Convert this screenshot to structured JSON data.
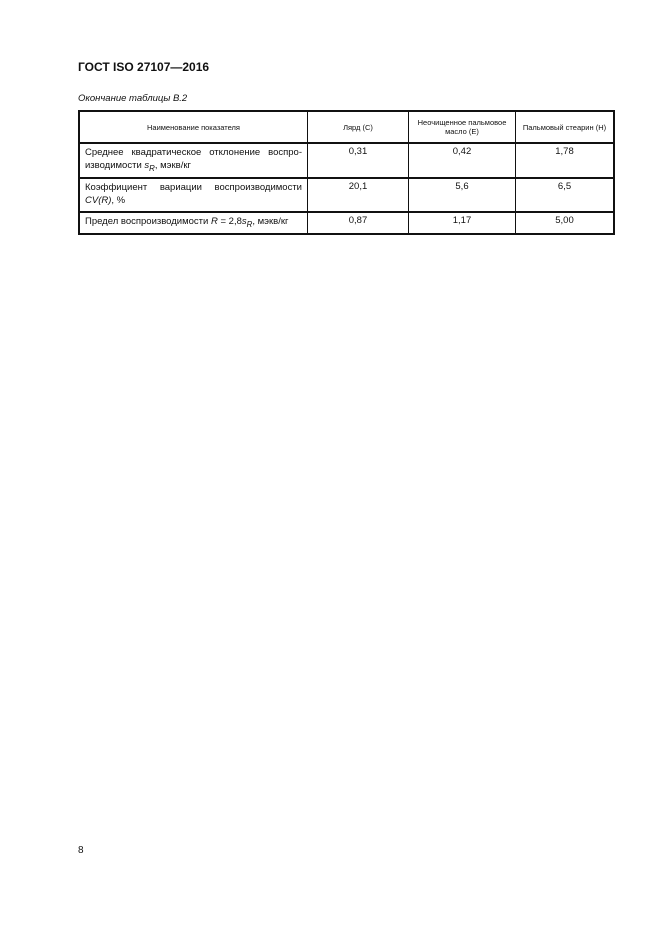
{
  "header": {
    "title": "ГОСТ ISO 27107—2016"
  },
  "caption": "Окончание таблицы В.2",
  "table": {
    "columns": [
      "Наименование показателя",
      "Лярд (С)",
      "Неочищенное пальмовое масло (Е)",
      "Пальмовый стеарин (Н)"
    ],
    "rows": [
      {
        "label_pre": "Среднее квадратическое отклонение воспро-изводимости ",
        "label_var": "s",
        "label_sub": "R",
        "label_post": ", мэкв/кг",
        "values": [
          "0,31",
          "0,42",
          "1,78"
        ]
      },
      {
        "label_pre": "Коэффициент вариации воспроизводимости ",
        "label_var": "CV(R)",
        "label_sub": "",
        "label_post": ", %",
        "values": [
          "20,1",
          "5,6",
          "6,5"
        ]
      },
      {
        "label_pre": "Предел воспроизводимости ",
        "label_var": "R",
        "label_mid": " = 2,8",
        "label_var2": "s",
        "label_sub": "R",
        "label_post": ", мэкв/кг",
        "values": [
          "0,87",
          "1,17",
          "5,00"
        ]
      }
    ]
  },
  "page_number": "8"
}
